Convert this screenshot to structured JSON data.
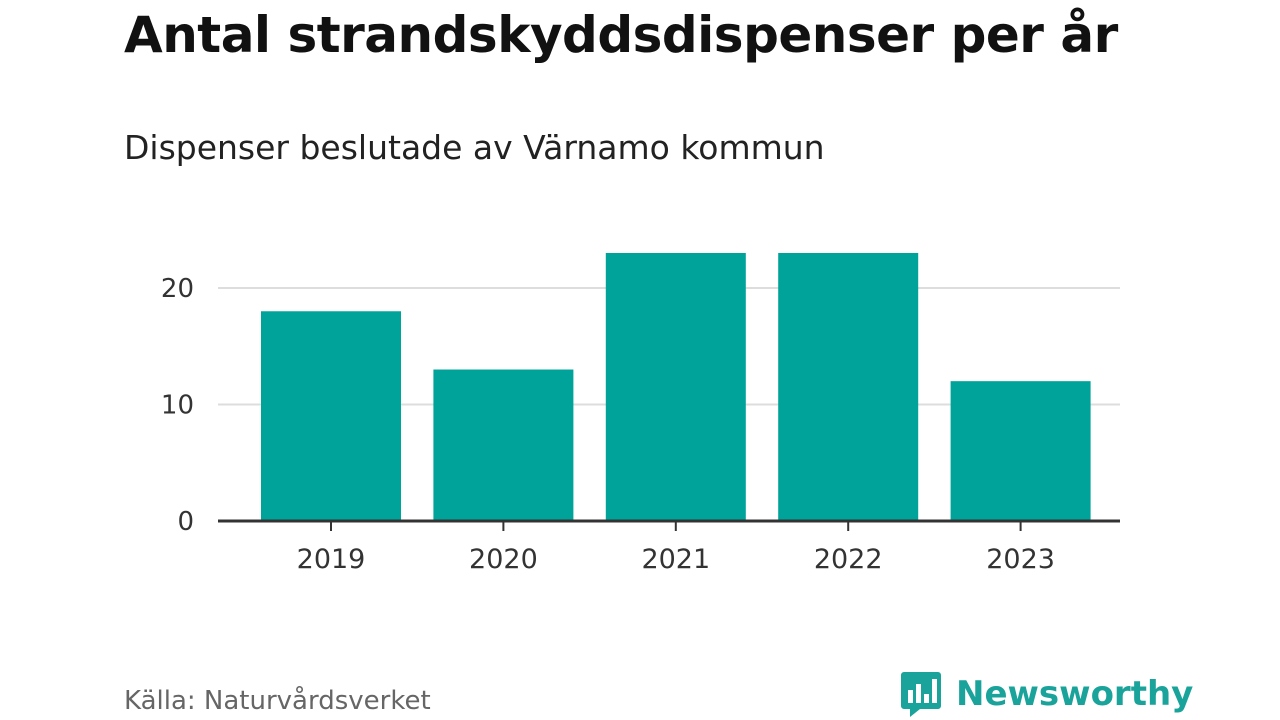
{
  "chart_data": {
    "type": "bar",
    "title": "Antal strandskyddsdispenser per år",
    "subtitle": "Dispenser beslutade av Värnamo kommun",
    "categories": [
      "2019",
      "2020",
      "2021",
      "2022",
      "2023"
    ],
    "values": [
      18,
      13,
      23,
      23,
      12
    ],
    "ylim": [
      0,
      23
    ],
    "yticks": [
      0,
      10,
      20
    ],
    "xlabel": "",
    "ylabel": "",
    "grid": true,
    "bar_color": "#00a39a",
    "grid_color": "#dddddd",
    "axis_color": "#333333"
  },
  "footer": {
    "source": "Källa: Naturvårdsverket",
    "brand": "Newsworthy",
    "brand_icon": "bar-chart-speech-bubble-icon",
    "brand_color": "#1aa39a"
  }
}
